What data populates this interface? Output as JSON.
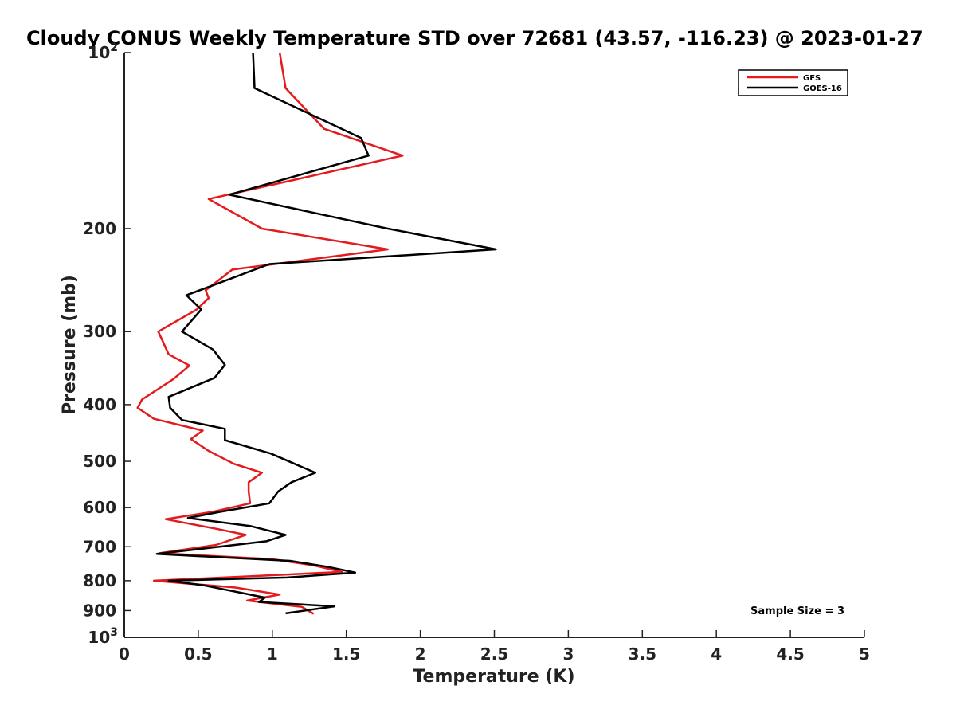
{
  "chart_data": {
    "type": "line",
    "title": "Cloudy CONUS Weekly Temperature STD over 72681 (43.57, -116.23) @ 2023-01-27",
    "xlabel": "Temperature (K)",
    "ylabel": "Pressure (mb)",
    "xlim": [
      0,
      5
    ],
    "ylim": [
      100,
      1000
    ],
    "y_scale": "log",
    "y_reversed": true,
    "x_ticks": [
      0,
      0.5,
      1,
      1.5,
      2,
      2.5,
      3,
      3.5,
      4,
      4.5,
      5
    ],
    "x_tick_labels": [
      "0",
      "0.5",
      "1",
      "1.5",
      "2",
      "2.5",
      "3",
      "3.5",
      "4",
      "4.5",
      "5"
    ],
    "y_ticks": [
      100,
      200,
      300,
      400,
      500,
      600,
      700,
      800,
      900,
      1000
    ],
    "y_tick_labels": [
      {
        "base": "10",
        "exp": "2"
      },
      {
        "base": "200",
        "exp": ""
      },
      {
        "base": "300",
        "exp": ""
      },
      {
        "base": "400",
        "exp": ""
      },
      {
        "base": "500",
        "exp": ""
      },
      {
        "base": "600",
        "exp": ""
      },
      {
        "base": "700",
        "exp": ""
      },
      {
        "base": "800",
        "exp": ""
      },
      {
        "base": "900",
        "exp": ""
      },
      {
        "base": "10",
        "exp": "3"
      }
    ],
    "grid": false,
    "legend_position": "top-right",
    "annotation": "Sample Size = 3",
    "series": [
      {
        "name": "GFS",
        "color": "#e41a1c",
        "points": [
          [
            1.05,
            100
          ],
          [
            1.09,
            115
          ],
          [
            1.35,
            135
          ],
          [
            1.88,
            150
          ],
          [
            0.57,
            178
          ],
          [
            0.93,
            200
          ],
          [
            1.78,
            217
          ],
          [
            0.73,
            235
          ],
          [
            0.55,
            255
          ],
          [
            0.57,
            263
          ],
          [
            0.49,
            275
          ],
          [
            0.23,
            300
          ],
          [
            0.3,
            328
          ],
          [
            0.44,
            343
          ],
          [
            0.33,
            362
          ],
          [
            0.12,
            392
          ],
          [
            0.09,
            405
          ],
          [
            0.2,
            423
          ],
          [
            0.53,
            443
          ],
          [
            0.45,
            458
          ],
          [
            0.57,
            480
          ],
          [
            0.74,
            505
          ],
          [
            0.93,
            523
          ],
          [
            0.84,
            543
          ],
          [
            0.84,
            562
          ],
          [
            0.85,
            590
          ],
          [
            0.6,
            610
          ],
          [
            0.28,
            628
          ],
          [
            0.62,
            652
          ],
          [
            0.82,
            668
          ],
          [
            0.62,
            695
          ],
          [
            0.24,
            718
          ],
          [
            1.0,
            735
          ],
          [
            1.28,
            753
          ],
          [
            1.47,
            773
          ],
          [
            0.2,
            800
          ],
          [
            0.75,
            822
          ],
          [
            1.05,
            845
          ],
          [
            0.83,
            865
          ],
          [
            1.2,
            887
          ],
          [
            1.28,
            912
          ]
        ]
      },
      {
        "name": "GOES-16",
        "color": "#000000",
        "points": [
          [
            0.87,
            100
          ],
          [
            0.88,
            115
          ],
          [
            1.6,
            140
          ],
          [
            1.65,
            150
          ],
          [
            0.71,
            175
          ],
          [
            1.78,
            200
          ],
          [
            2.51,
            217
          ],
          [
            0.98,
            230
          ],
          [
            0.6,
            250
          ],
          [
            0.42,
            260
          ],
          [
            0.52,
            275
          ],
          [
            0.39,
            300
          ],
          [
            0.6,
            322
          ],
          [
            0.68,
            342
          ],
          [
            0.61,
            360
          ],
          [
            0.3,
            388
          ],
          [
            0.31,
            405
          ],
          [
            0.39,
            425
          ],
          [
            0.68,
            440
          ],
          [
            0.68,
            460
          ],
          [
            0.99,
            485
          ],
          [
            1.15,
            505
          ],
          [
            1.29,
            523
          ],
          [
            1.13,
            543
          ],
          [
            1.04,
            563
          ],
          [
            0.98,
            590
          ],
          [
            0.65,
            610
          ],
          [
            0.43,
            625
          ],
          [
            0.85,
            645
          ],
          [
            1.09,
            668
          ],
          [
            0.96,
            685
          ],
          [
            0.22,
            720
          ],
          [
            1.12,
            740
          ],
          [
            1.38,
            758
          ],
          [
            1.56,
            775
          ],
          [
            1.1,
            790
          ],
          [
            0.3,
            800
          ],
          [
            0.54,
            815
          ],
          [
            0.95,
            855
          ],
          [
            0.91,
            870
          ],
          [
            1.42,
            885
          ],
          [
            1.09,
            910
          ]
        ]
      }
    ]
  }
}
